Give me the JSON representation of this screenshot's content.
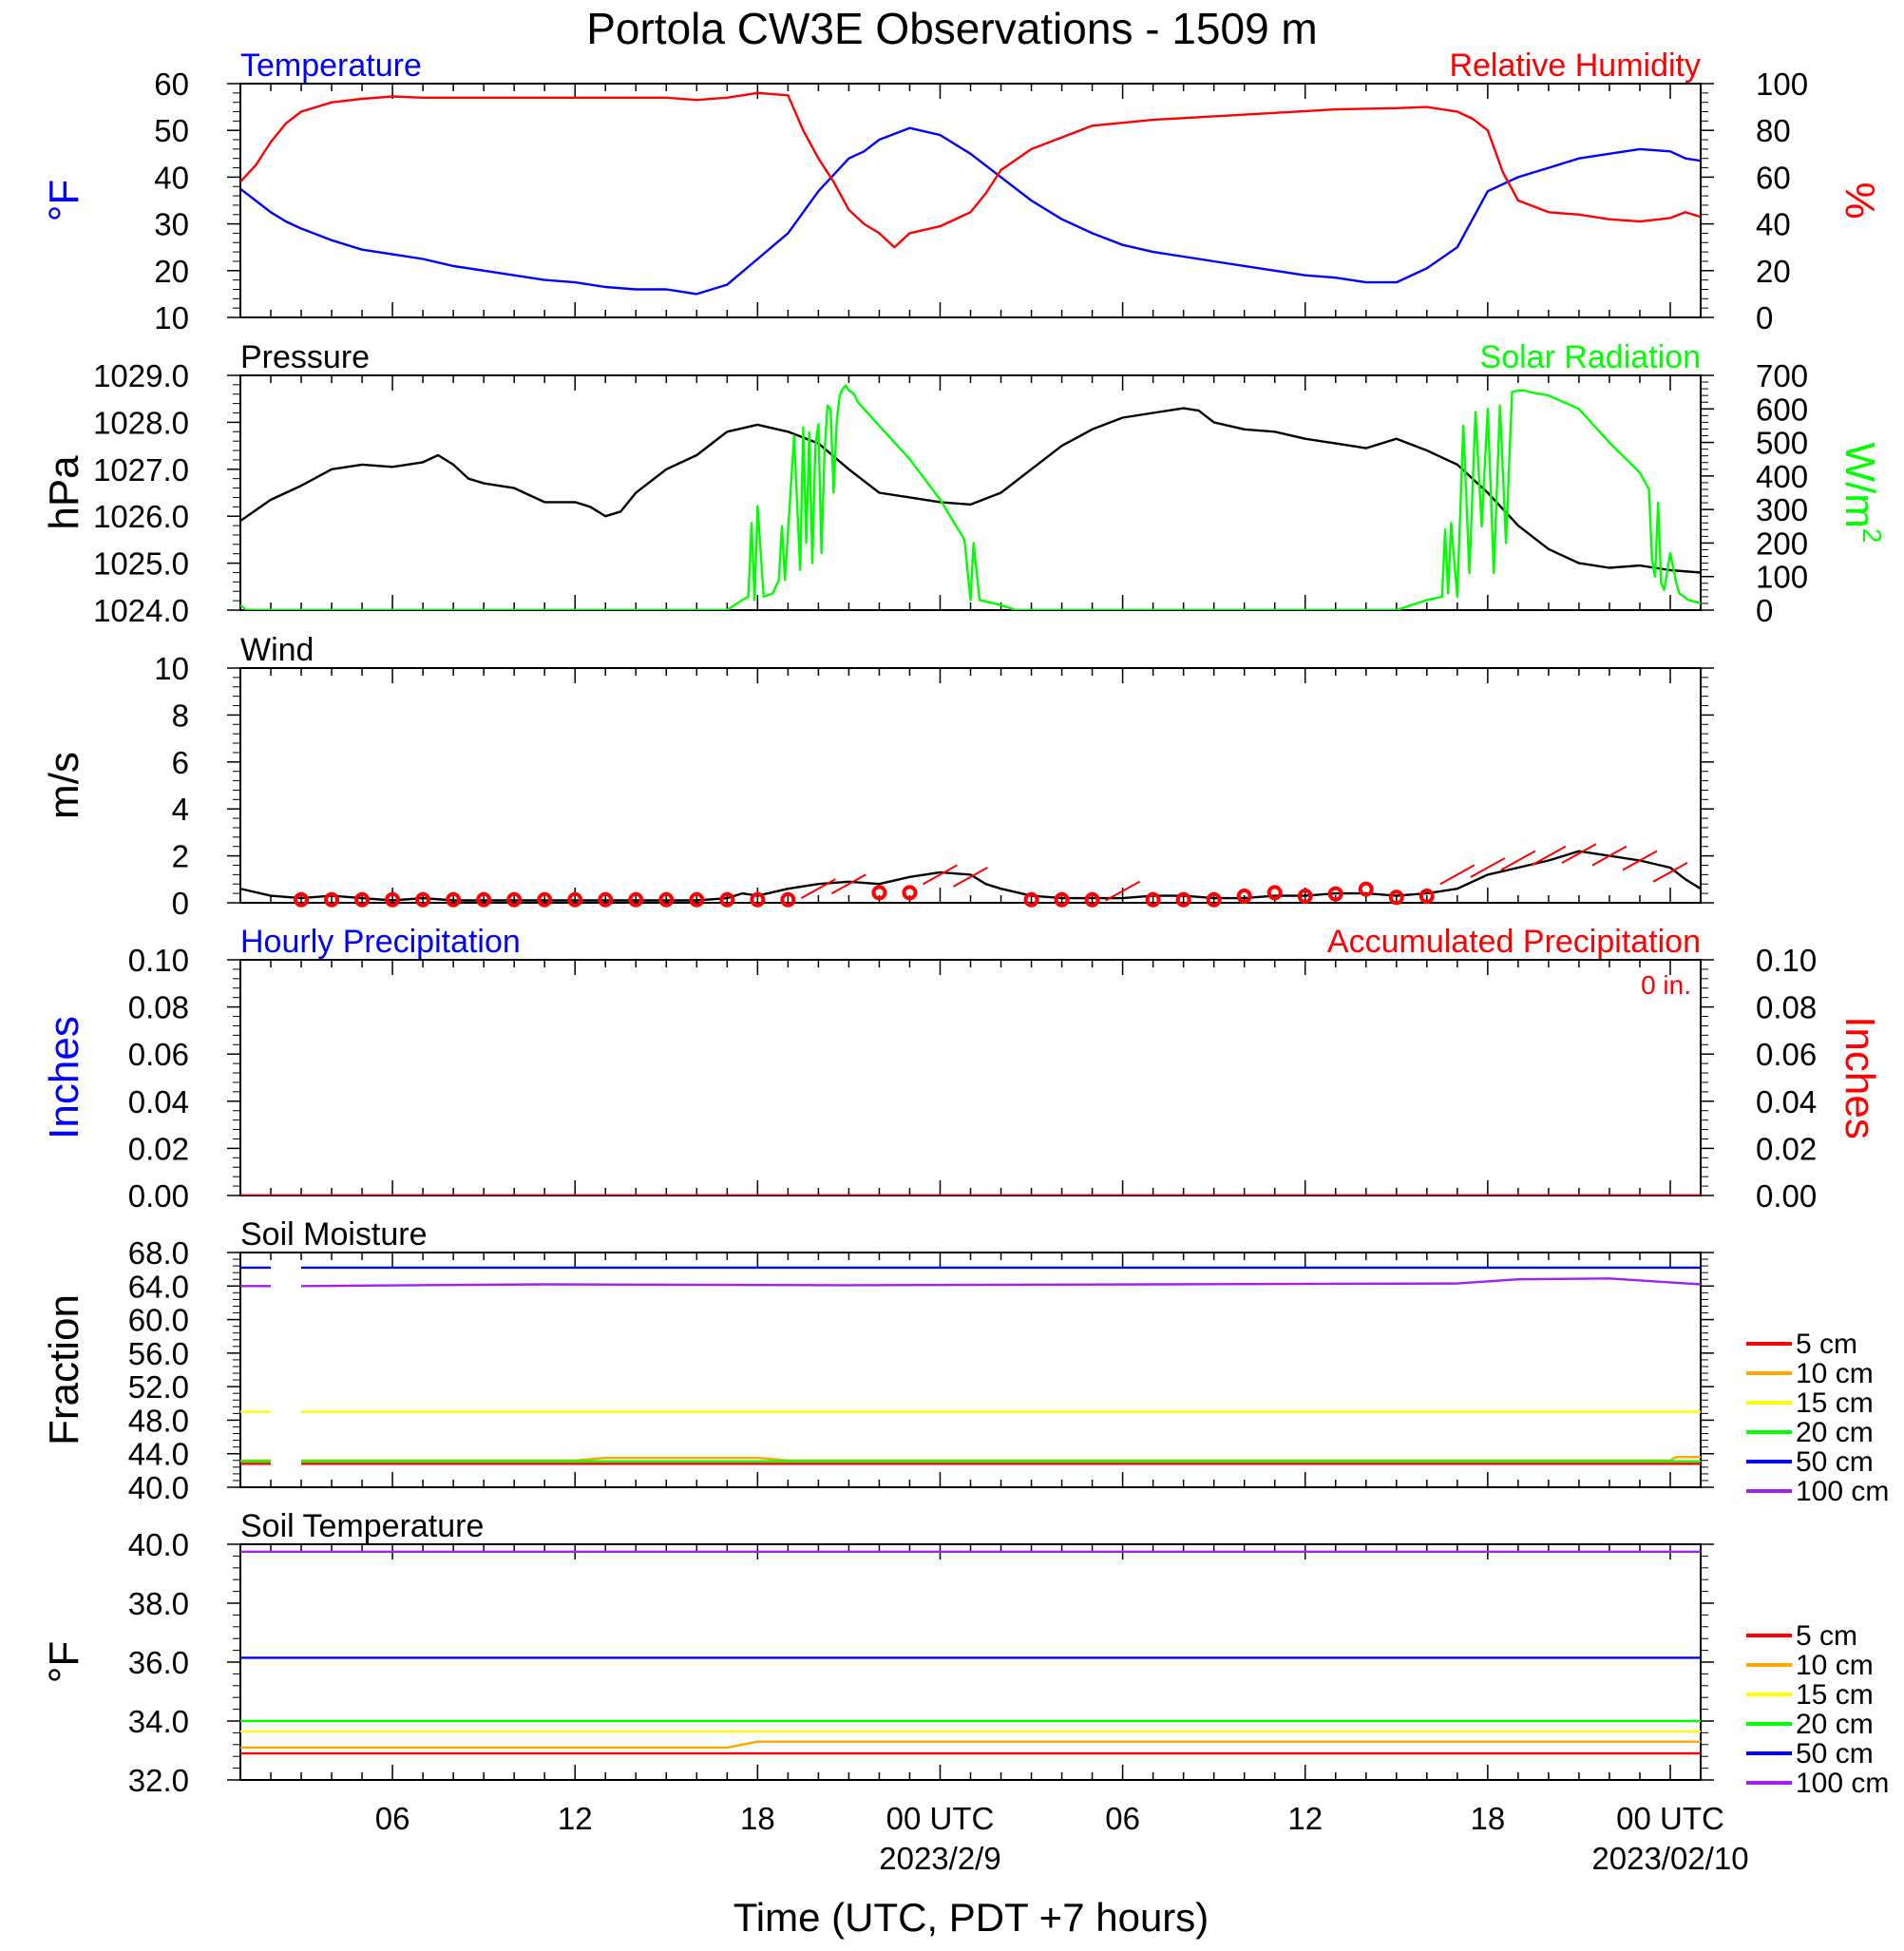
{
  "figure": {
    "title": "Portola CW3E Observations - 1509 m",
    "x_axis_title": "Time (UTC, PDT +7 hours)",
    "x_tick_labels": [
      "06",
      "12",
      "18",
      "00 UTC",
      "06",
      "12",
      "18",
      "00 UTC"
    ],
    "x_date_labels": [
      "2023/2/9",
      "2023/02/10"
    ],
    "colors": {
      "blue": "#0000ff",
      "red": "#ff0000",
      "green": "#00ff00",
      "black": "#000000",
      "orange": "#ffa500",
      "yellow": "#ffff00",
      "purple": "#a020f0"
    }
  },
  "chart_data": [
    {
      "type": "line",
      "x_unit": "hours since 2023-02-08 01:00 UTC",
      "xlim": [
        0,
        48
      ],
      "left_title": "Temperature",
      "right_title": "Relative Humidity",
      "ylabel_left": "°F",
      "ylabel_right": "%",
      "ylim_left": [
        10,
        60
      ],
      "ylim_right": [
        0,
        100
      ],
      "yticks_left": [
        "60",
        "50",
        "40",
        "30",
        "20",
        "10"
      ],
      "yticks_right": [
        "100",
        "80",
        "60",
        "40",
        "20",
        "0"
      ],
      "series": [
        {
          "name": "Temperature",
          "axis": "left",
          "color": "#0000ff",
          "x": [
            0,
            0.5,
            1,
            1.5,
            2,
            3,
            4,
            5,
            6,
            7,
            8,
            9,
            10,
            11,
            12,
            13,
            14,
            14.5,
            15,
            16,
            17,
            18,
            19,
            20,
            20.5,
            21,
            22,
            23,
            24,
            25,
            26,
            27,
            28,
            29,
            30,
            31,
            32,
            33,
            34,
            35,
            36,
            37,
            38,
            39,
            40,
            41,
            42,
            43,
            44,
            45,
            46,
            47,
            47.5,
            48
          ],
          "y": [
            37.5,
            35,
            32.5,
            30.5,
            29,
            26.5,
            24.5,
            23.5,
            22.5,
            21,
            20,
            19,
            18,
            17.5,
            16.5,
            16,
            16,
            15.5,
            15,
            17,
            22.5,
            28,
            37,
            44,
            45.5,
            48,
            50.5,
            49,
            45,
            40,
            35,
            31,
            28,
            25.5,
            24,
            23,
            22,
            21,
            20,
            19,
            18.5,
            17.5,
            17.5,
            20.5,
            25,
            37,
            40,
            42,
            44,
            45,
            46,
            45.5,
            44,
            43.5
          ]
        },
        {
          "name": "Relative Humidity",
          "axis": "right",
          "color": "#ff0000",
          "x": [
            0,
            0.5,
            1,
            1.5,
            2,
            3,
            4,
            5,
            6,
            8,
            10,
            12,
            14,
            15,
            16,
            16.5,
            17,
            17.5,
            18,
            18.5,
            19,
            19.5,
            20,
            20.5,
            21,
            21.5,
            22,
            23,
            24,
            24.5,
            25,
            26,
            27,
            28,
            30,
            32,
            34,
            36,
            38,
            39,
            40,
            40.5,
            41,
            41.5,
            42,
            43,
            44,
            45,
            46,
            47,
            47.5,
            48
          ],
          "y": [
            58,
            65,
            75,
            83,
            88,
            92,
            93.5,
            94.5,
            94,
            94,
            94,
            94,
            94,
            93,
            94,
            95,
            96,
            95.5,
            95,
            80,
            68,
            58,
            46,
            40,
            36,
            30,
            36,
            39,
            45,
            53,
            63,
            72,
            77,
            82,
            84.5,
            86,
            87.5,
            89,
            89.5,
            90,
            88,
            85,
            80,
            62,
            50,
            45,
            44,
            42,
            41,
            42.5,
            45,
            43
          ]
        }
      ]
    },
    {
      "type": "line",
      "x_unit": "hours since 2023-02-08 01:00 UTC",
      "xlim": [
        0,
        48
      ],
      "left_title": "Pressure",
      "right_title": "Solar Radiation",
      "ylabel_left": "hPa",
      "ylabel_right_base": "W/m",
      "ylabel_right_exp": "2",
      "ylim_left": [
        1024,
        1029
      ],
      "ylim_right": [
        0,
        700
      ],
      "yticks_left": [
        "1029.0",
        "1028.0",
        "1027.0",
        "1026.0",
        "1025.0",
        "1024.0"
      ],
      "yticks_right": [
        "700",
        "600",
        "500",
        "400",
        "300",
        "200",
        "100",
        "0"
      ],
      "series": [
        {
          "name": "Pressure",
          "axis": "left",
          "color": "#000000",
          "x": [
            0,
            1,
            2,
            3,
            4,
            5,
            6,
            6.5,
            7,
            7.5,
            8,
            9,
            10,
            11,
            11.5,
            12,
            12.5,
            13,
            14,
            15,
            16,
            17,
            18,
            19,
            20,
            21,
            22,
            23,
            24,
            25,
            26,
            27,
            28,
            29,
            30,
            31,
            31.5,
            32,
            33,
            34,
            35,
            36,
            37,
            38,
            39,
            40,
            41,
            42,
            43,
            44,
            45,
            46,
            47,
            48
          ],
          "y": [
            1025.9,
            1026.35,
            1026.65,
            1027.0,
            1027.1,
            1027.05,
            1027.15,
            1027.3,
            1027.1,
            1026.8,
            1026.7,
            1026.6,
            1026.3,
            1026.3,
            1026.2,
            1026.0,
            1026.1,
            1026.5,
            1027.0,
            1027.3,
            1027.8,
            1027.95,
            1027.8,
            1027.55,
            1027.0,
            1026.5,
            1026.4,
            1026.3,
            1026.25,
            1026.5,
            1027.0,
            1027.5,
            1027.85,
            1028.1,
            1028.2,
            1028.3,
            1028.25,
            1028.0,
            1027.85,
            1027.8,
            1027.65,
            1027.55,
            1027.45,
            1027.65,
            1027.4,
            1027.1,
            1026.5,
            1025.8,
            1025.3,
            1025.0,
            1024.9,
            1024.95,
            1024.85,
            1024.8
          ]
        },
        {
          "name": "Solar Radiation",
          "axis": "right",
          "color": "#00ff00",
          "x": [
            0,
            0.2,
            1,
            14,
            15,
            16,
            16.5,
            16.7,
            16.8,
            16.9,
            17.0,
            17.2,
            17.5,
            17.7,
            17.8,
            17.9,
            18.2,
            18.4,
            18.5,
            18.6,
            18.7,
            18.8,
            18.9,
            19.0,
            19.1,
            19.2,
            19.3,
            19.4,
            19.5,
            19.6,
            19.7,
            19.8,
            19.9,
            20.0,
            20.1,
            20.2,
            20.3,
            21,
            22,
            23,
            23.8,
            24.0,
            24.1,
            24.3,
            25,
            25.5,
            33,
            38,
            39,
            39.5,
            39.6,
            39.7,
            39.8,
            40,
            40.2,
            40.4,
            40.6,
            40.8,
            41.0,
            41.2,
            41.4,
            41.6,
            41.8,
            42.0,
            42.2,
            42.4,
            43,
            44,
            45,
            46,
            46.3,
            46.4,
            46.5,
            46.6,
            46.7,
            46.8,
            47,
            47.2,
            47.3,
            47.6,
            48
          ],
          "y": [
            15,
            0,
            0,
            0,
            0,
            0,
            30,
            40,
            260,
            30,
            310,
            40,
            50,
            90,
            250,
            90,
            520,
            120,
            545,
            200,
            530,
            140,
            490,
            555,
            170,
            470,
            610,
            600,
            350,
            560,
            640,
            660,
            670,
            655,
            650,
            640,
            620,
            550,
            450,
            330,
            210,
            30,
            200,
            30,
            15,
            0,
            0,
            0,
            30,
            40,
            240,
            50,
            260,
            40,
            550,
            110,
            590,
            250,
            600,
            110,
            610,
            200,
            650,
            655,
            655,
            650,
            640,
            600,
            500,
            410,
            360,
            150,
            100,
            320,
            80,
            60,
            170,
            80,
            50,
            30,
            20
          ]
        }
      ]
    },
    {
      "type": "line",
      "x_unit": "hours since 2023-02-08 01:00 UTC",
      "xlim": [
        0,
        48
      ],
      "left_title": "Wind",
      "ylabel_left": "m/s",
      "ylim_left": [
        0,
        10
      ],
      "yticks_left": [
        "10",
        "8",
        "6",
        "4",
        "2",
        "0"
      ],
      "series": [
        {
          "name": "Wind Speed",
          "axis": "left",
          "color": "#000000",
          "x": [
            0,
            1,
            2,
            3,
            4,
            5,
            6,
            7,
            8,
            9,
            10,
            11,
            12,
            13,
            14,
            15,
            16,
            16.5,
            17,
            18,
            19,
            20,
            21,
            22,
            23,
            24,
            24.5,
            25,
            26,
            27,
            28,
            29,
            30,
            31,
            32,
            33,
            34,
            35,
            36,
            37,
            38,
            39,
            40,
            41,
            42,
            43,
            44,
            45,
            46,
            47,
            47.5,
            48
          ],
          "y": [
            0.6,
            0.3,
            0.2,
            0.3,
            0.2,
            0.1,
            0.2,
            0.1,
            0.1,
            0.1,
            0.1,
            0.1,
            0.1,
            0.1,
            0.1,
            0.1,
            0.2,
            0.4,
            0.3,
            0.6,
            0.8,
            0.9,
            0.8,
            1.1,
            1.3,
            1.2,
            0.8,
            0.6,
            0.3,
            0.2,
            0.2,
            0.2,
            0.3,
            0.3,
            0.2,
            0.2,
            0.3,
            0.3,
            0.4,
            0.4,
            0.3,
            0.4,
            0.6,
            1.2,
            1.5,
            1.8,
            2.2,
            2.0,
            1.8,
            1.5,
            1.0,
            0.6
          ]
        }
      ],
      "calm_markers_x": [
        2,
        3,
        4,
        5,
        6,
        7,
        8,
        9,
        10,
        11,
        12,
        13,
        14,
        15,
        16,
        17,
        18,
        21,
        22,
        26,
        27,
        28,
        30,
        31,
        32,
        33,
        34,
        35,
        36,
        37,
        38,
        39
      ],
      "calm_markers_y": [
        0.05,
        0.05,
        0.05,
        0.05,
        0.05,
        0.05,
        0.05,
        0.05,
        0.05,
        0.05,
        0.05,
        0.05,
        0.05,
        0.05,
        0.05,
        0.05,
        0.05,
        0.35,
        0.35,
        0.05,
        0.05,
        0.05,
        0.05,
        0.05,
        0.05,
        0.2,
        0.35,
        0.2,
        0.3,
        0.5,
        0.15,
        0.2
      ],
      "barbs_x": [
        19,
        20,
        23,
        24,
        29,
        40,
        41,
        42,
        43,
        44,
        45,
        46,
        47
      ],
      "barbs_y": [
        0.6,
        0.8,
        1.2,
        1.1,
        0.5,
        1.2,
        1.5,
        1.8,
        2.0,
        2.1,
        2.0,
        1.8,
        1.3
      ]
    },
    {
      "type": "line",
      "x_unit": "hours since 2023-02-08 01:00 UTC",
      "xlim": [
        0,
        48
      ],
      "left_title": "Hourly Precipitation",
      "right_title": "Accumulated Precipitation",
      "annotation": "0 in.",
      "ylabel_left": "Inches",
      "ylabel_right": "Inches",
      "ylim_left": [
        0,
        0.1
      ],
      "ylim_right": [
        0,
        0.1
      ],
      "yticks_left": [
        "0.10",
        "0.08",
        "0.06",
        "0.04",
        "0.02",
        "0.00"
      ],
      "yticks_right": [
        "0.10",
        "0.08",
        "0.06",
        "0.04",
        "0.02",
        "0.00"
      ],
      "series": [
        {
          "name": "Hourly Precipitation",
          "axis": "left",
          "color": "#0000ff",
          "x": [
            0,
            48
          ],
          "y": [
            0,
            0
          ]
        },
        {
          "name": "Accumulated Precipitation",
          "axis": "right",
          "color": "#ff0000",
          "x": [
            0,
            48
          ],
          "y": [
            0,
            0
          ]
        }
      ]
    },
    {
      "type": "line",
      "x_unit": "hours since 2023-02-08 01:00 UTC",
      "xlim": [
        0,
        48
      ],
      "left_title": "Soil Moisture",
      "ylabel_left": "Fraction",
      "ylim_left": [
        40,
        68
      ],
      "yticks_left": [
        "68.0",
        "64.0",
        "60.0",
        "56.0",
        "52.0",
        "48.0",
        "44.0",
        "40.0"
      ],
      "legend": [
        "5 cm",
        "10 cm",
        "15 cm",
        "20 cm",
        "50 cm",
        "100 cm"
      ],
      "gap_x": [
        1.0,
        2.0
      ],
      "series": [
        {
          "name": "5 cm",
          "color": "#ff0000",
          "x": [
            0,
            48
          ],
          "y": [
            42.8,
            42.8
          ]
        },
        {
          "name": "10 cm",
          "color": "#ffa500",
          "x": [
            0,
            11,
            12,
            17,
            18,
            47,
            47.2,
            48
          ],
          "y": [
            43.2,
            43.2,
            43.5,
            43.5,
            43.2,
            43.2,
            43.6,
            43.6
          ]
        },
        {
          "name": "15 cm",
          "color": "#ffff00",
          "x": [
            0,
            48
          ],
          "y": [
            49.0,
            49.0
          ]
        },
        {
          "name": "20 cm",
          "color": "#00ff00",
          "x": [
            0,
            48
          ],
          "y": [
            43.1,
            43.1
          ]
        },
        {
          "name": "50 cm",
          "color": "#0000ff",
          "x": [
            0,
            48
          ],
          "y": [
            66.2,
            66.2
          ]
        },
        {
          "name": "100 cm",
          "color": "#a020f0",
          "x": [
            0,
            10,
            20,
            30,
            40,
            42,
            45,
            48
          ],
          "y": [
            64.0,
            64.2,
            64.1,
            64.2,
            64.3,
            64.8,
            64.9,
            64.2
          ]
        }
      ]
    },
    {
      "type": "line",
      "x_unit": "hours since 2023-02-08 01:00 UTC",
      "xlim": [
        0,
        48
      ],
      "left_title": "Soil Temperature",
      "ylabel_left": "°F",
      "ylim_left": [
        32,
        40
      ],
      "yticks_left": [
        "40.0",
        "38.0",
        "36.0",
        "34.0",
        "32.0"
      ],
      "legend": [
        "5 cm",
        "10 cm",
        "15 cm",
        "20 cm",
        "50 cm",
        "100 cm"
      ],
      "series": [
        {
          "name": "5 cm",
          "color": "#ff0000",
          "x": [
            0,
            48
          ],
          "y": [
            32.9,
            32.9
          ]
        },
        {
          "name": "10 cm",
          "color": "#ffa500",
          "x": [
            0,
            16,
            17,
            48
          ],
          "y": [
            33.1,
            33.1,
            33.3,
            33.3
          ]
        },
        {
          "name": "15 cm",
          "color": "#ffff00",
          "x": [
            0,
            48
          ],
          "y": [
            33.65,
            33.65
          ]
        },
        {
          "name": "20 cm",
          "color": "#00ff00",
          "x": [
            0,
            48
          ],
          "y": [
            34.0,
            34.0
          ]
        },
        {
          "name": "50 cm",
          "color": "#0000ff",
          "x": [
            0,
            48
          ],
          "y": [
            36.15,
            36.15
          ]
        },
        {
          "name": "100 cm",
          "color": "#a020f0",
          "x": [
            0,
            48
          ],
          "y": [
            39.75,
            39.75
          ]
        }
      ]
    }
  ]
}
